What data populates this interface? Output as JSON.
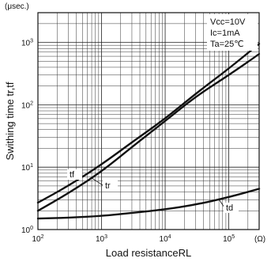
{
  "chart_data": {
    "type": "line",
    "title": "",
    "xlabel": "Load resistanceRL",
    "ylabel": "Swithing time  tr,tf",
    "x_unit": "(Ω)",
    "y_unit": "(μsec.)",
    "x_scale": "log",
    "y_scale": "log",
    "xlim": [
      100,
      300000
    ],
    "ylim": [
      1,
      3000
    ],
    "grid": true,
    "x_ticks": [
      {
        "value": 100,
        "base": "10",
        "exp": "2"
      },
      {
        "value": 1000,
        "base": "10",
        "exp": "3"
      },
      {
        "value": 10000,
        "base": "10",
        "exp": "4"
      },
      {
        "value": 100000,
        "base": "10",
        "exp": "5"
      }
    ],
    "y_ticks": [
      {
        "value": 1,
        "base": "10",
        "exp": "0"
      },
      {
        "value": 10,
        "base": "10",
        "exp": "1"
      },
      {
        "value": 100,
        "base": "10",
        "exp": "2"
      },
      {
        "value": 1000,
        "base": "10",
        "exp": "3"
      }
    ],
    "conditions": [
      "Vcc=10V",
      "Ic=1mA",
      "Ta=25℃"
    ],
    "series": [
      {
        "name": "tf",
        "x": [
          100,
          300,
          1000,
          3000,
          10000,
          30000,
          100000,
          300000
        ],
        "values": [
          2.7,
          5.0,
          11,
          25,
          60,
          150,
          380,
          950
        ]
      },
      {
        "name": "tr",
        "x": [
          100,
          300,
          1000,
          3000,
          10000,
          30000,
          100000,
          300000
        ],
        "values": [
          2.0,
          3.8,
          8.5,
          21,
          55,
          135,
          300,
          650
        ]
      },
      {
        "name": "td",
        "x": [
          100,
          300,
          1000,
          3000,
          10000,
          30000,
          100000,
          300000
        ],
        "values": [
          1.5,
          1.55,
          1.65,
          1.85,
          2.1,
          2.5,
          3.3,
          4.5
        ]
      }
    ]
  }
}
